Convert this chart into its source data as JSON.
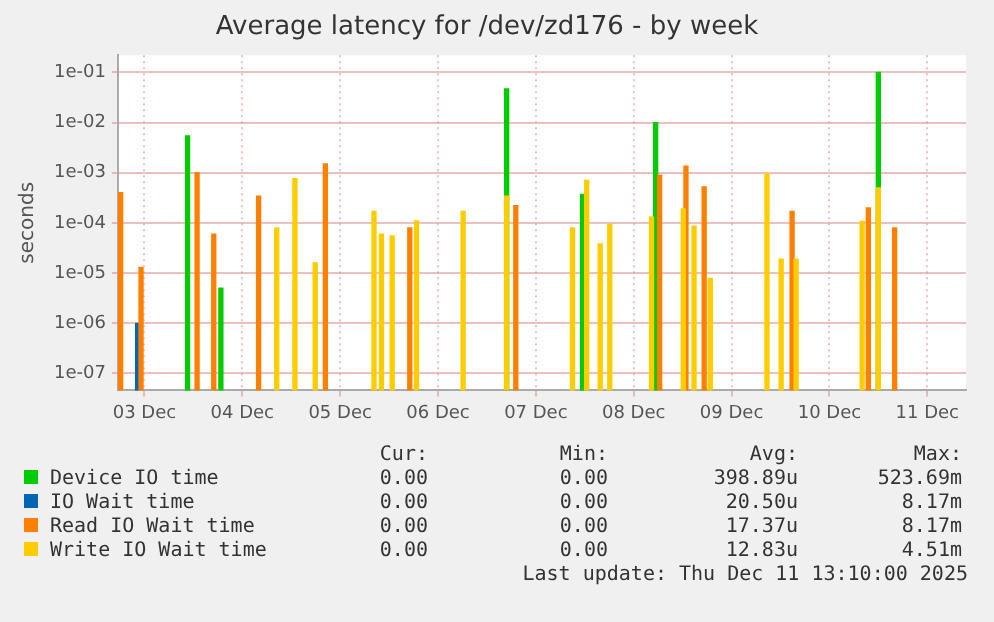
{
  "chart_data": {
    "type": "bar",
    "title": "Average latency for /dev/zd176 - by week",
    "ylabel": "seconds",
    "log": true,
    "grid": true,
    "legend": "bottom",
    "xlim": [
      "2025-12-02T17:30",
      "2025-12-11T09:30"
    ],
    "xticks": [
      {
        "value": "2025-12-03",
        "label": "03 Dec"
      },
      {
        "value": "2025-12-04",
        "label": "04 Dec"
      },
      {
        "value": "2025-12-05",
        "label": "05 Dec"
      },
      {
        "value": "2025-12-06",
        "label": "06 Dec"
      },
      {
        "value": "2025-12-07",
        "label": "07 Dec"
      },
      {
        "value": "2025-12-08",
        "label": "08 Dec"
      },
      {
        "value": "2025-12-09",
        "label": "09 Dec"
      },
      {
        "value": "2025-12-10",
        "label": "10 Dec"
      },
      {
        "value": "2025-12-11",
        "label": "11 Dec"
      }
    ],
    "ylim": [
      4.6e-08,
      0.22
    ],
    "yticks": [
      {
        "value": 1e-07,
        "label": "1e-07"
      },
      {
        "value": 1e-06,
        "label": "1e-06"
      },
      {
        "value": 1e-05,
        "label": "1e-05"
      },
      {
        "value": 0.0001,
        "label": "1e-04"
      },
      {
        "value": 0.001,
        "label": "1e-03"
      },
      {
        "value": 0.01,
        "label": "1e-02"
      },
      {
        "value": 0.1,
        "label": "1e-01"
      }
    ],
    "series": [
      {
        "name": "Device IO time",
        "color": "#00cc00",
        "x": [
          "2025-12-03T10:35",
          "2025-12-03T18:45",
          "2025-12-06T16:50",
          "2025-12-07T11:28",
          "2025-12-08T05:23",
          "2025-12-10T12:00"
        ],
        "values": [
          0.0054,
          5e-06,
          0.047,
          0.00037,
          0.01,
          0.1
        ]
      },
      {
        "name": "IO Wait time",
        "color": "#0066b3",
        "x": [
          "2025-12-02T22:20"
        ],
        "values": [
          1e-06
        ]
      },
      {
        "name": "Read IO Wait time",
        "color": "#ff8000",
        "x": [
          "2025-12-02T18:10",
          "2025-12-02T23:10",
          "2025-12-03T12:55",
          "2025-12-03T17:00",
          "2025-12-04T04:00",
          "2025-12-04T20:23",
          "2025-12-05T17:05",
          "2025-12-06T19:05",
          "2025-12-08T06:22",
          "2025-12-08T12:49",
          "2025-12-08T17:17",
          "2025-12-09T14:51",
          "2025-12-10T09:33",
          "2025-12-10T16:00"
        ],
        "values": [
          0.0004,
          1.3e-05,
          0.001,
          6e-05,
          0.00034,
          0.0015,
          8e-05,
          0.00022,
          0.0009,
          0.00135,
          0.00052,
          0.00017,
          0.0002,
          8e-05
        ]
      },
      {
        "name": "Write IO Wait time",
        "color": "#ffcc00",
        "x": [
          "2025-12-04T08:27",
          "2025-12-04T12:55",
          "2025-12-04T17:53",
          "2025-12-05T08:18",
          "2025-12-05T10:08",
          "2025-12-05T12:46",
          "2025-12-05T18:44",
          "2025-12-06T06:10",
          "2025-12-06T16:50",
          "2025-12-07T09:00",
          "2025-12-07T12:28",
          "2025-12-07T15:47",
          "2025-12-07T18:08",
          "2025-12-08T04:22",
          "2025-12-08T12:10",
          "2025-12-08T14:48",
          "2025-12-08T18:47",
          "2025-12-09T08:41",
          "2025-12-09T12:10",
          "2025-12-09T15:50",
          "2025-12-10T08:02",
          "2025-12-10T12:00"
        ],
        "values": [
          8e-05,
          0.00076,
          1.6e-05,
          0.00017,
          6e-05,
          5.5e-05,
          0.00011,
          0.00017,
          0.00034,
          8e-05,
          0.0007,
          3.8e-05,
          9.3e-05,
          0.00013,
          0.00019,
          8.6e-05,
          7.8e-06,
          0.00095,
          1.9e-05,
          1.9e-05,
          0.000107,
          0.0005
        ]
      }
    ],
    "annotations": [
      "Cur:",
      "Min:",
      "Avg:",
      "Max:",
      "0.00",
      "0.00",
      "398.89u",
      "523.69m",
      "0.00",
      "0.00",
      "20.50u",
      "8.17m",
      "0.00",
      "0.00",
      "17.37u",
      "8.17m",
      "0.00",
      "0.00",
      "12.83u",
      "4.51m",
      "Last update: Thu Dec 11 13:10:00 2025"
    ]
  }
}
